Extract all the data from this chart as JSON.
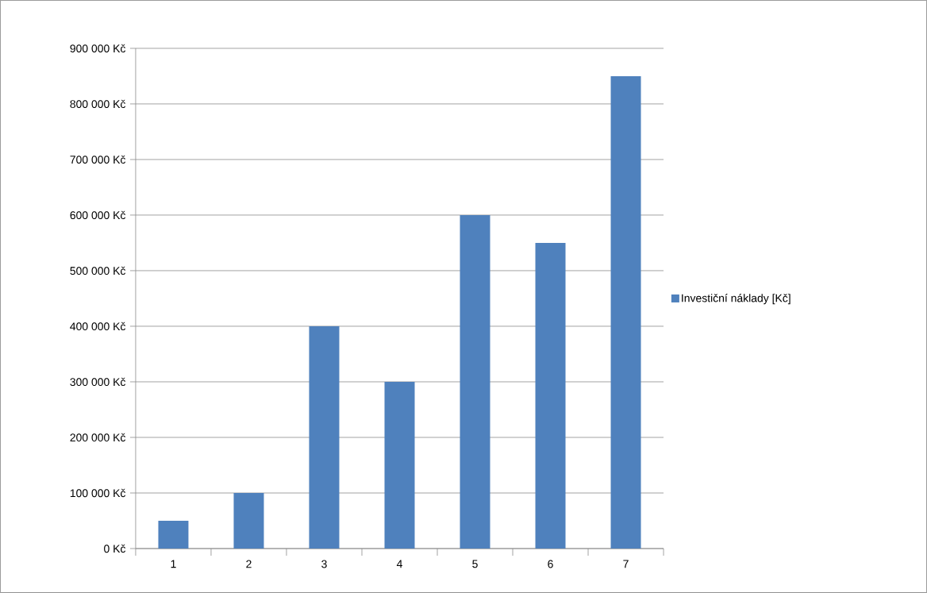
{
  "chart_data": {
    "type": "bar",
    "categories": [
      "1",
      "2",
      "3",
      "4",
      "5",
      "6",
      "7"
    ],
    "series": [
      {
        "name": "Investiční náklady [Kč]",
        "color": "#4f81bd",
        "values": [
          50000,
          100000,
          400000,
          300000,
          600000,
          550000,
          850000
        ]
      }
    ],
    "ylim": [
      0,
      900000
    ],
    "yticks": [
      {
        "value": 0,
        "label": "0 Kč"
      },
      {
        "value": 100000,
        "label": "100 000 Kč"
      },
      {
        "value": 200000,
        "label": "200 000 Kč"
      },
      {
        "value": 300000,
        "label": "300 000 Kč"
      },
      {
        "value": 400000,
        "label": "400 000 Kč"
      },
      {
        "value": 500000,
        "label": "500 000 Kč"
      },
      {
        "value": 600000,
        "label": "600 000 Kč"
      },
      {
        "value": 700000,
        "label": "700 000 Kč"
      },
      {
        "value": 800000,
        "label": "800 000 Kč"
      },
      {
        "value": 900000,
        "label": "900 000 Kč"
      }
    ],
    "grid": "y",
    "legend": "right"
  }
}
